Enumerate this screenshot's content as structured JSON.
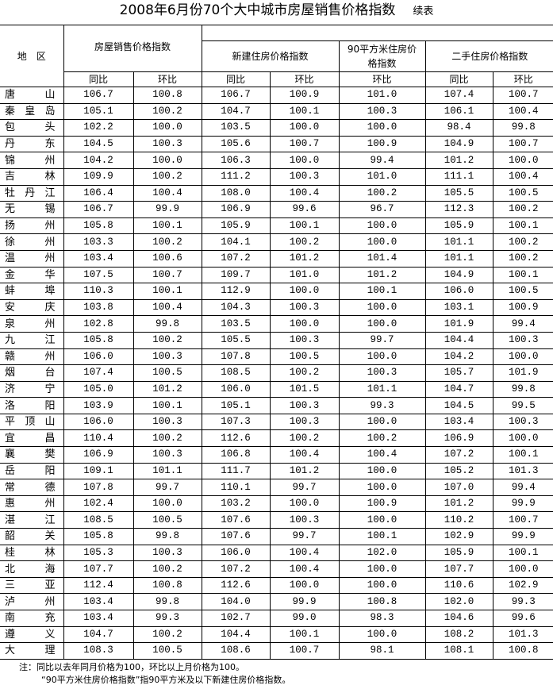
{
  "title": "2008年6月份70个大中城市房屋销售价格指数",
  "title_suffix": "续表",
  "headers": {
    "region": "地　区",
    "group1": "房屋销售价格指数",
    "group2": "新建住房价格指数",
    "group3": "90平方米住房价格指数",
    "group4": "二手住房价格指数",
    "yoy": "同比",
    "mom": "环比"
  },
  "rows": [
    [
      "唐山",
      "106.7",
      "100.8",
      "106.7",
      "100.9",
      "101.0",
      "107.4",
      "100.7"
    ],
    [
      "秦皇岛",
      "105.1",
      "100.2",
      "104.7",
      "100.1",
      "100.3",
      "106.1",
      "100.4"
    ],
    [
      "包头",
      "102.2",
      "100.0",
      "103.5",
      "100.0",
      "100.0",
      "98.4",
      "99.8"
    ],
    [
      "丹东",
      "104.5",
      "100.3",
      "105.6",
      "100.7",
      "100.9",
      "104.9",
      "100.7"
    ],
    [
      "锦州",
      "104.2",
      "100.0",
      "106.3",
      "100.0",
      "99.4",
      "101.2",
      "100.0"
    ],
    [
      "吉林",
      "109.9",
      "100.2",
      "111.2",
      "100.3",
      "101.0",
      "111.1",
      "100.4"
    ],
    [
      "牡丹江",
      "106.4",
      "100.4",
      "108.0",
      "100.4",
      "100.2",
      "105.5",
      "100.5"
    ],
    [
      "无锡",
      "106.7",
      "99.9",
      "106.9",
      "99.6",
      "96.7",
      "112.3",
      "100.2"
    ],
    [
      "扬州",
      "105.8",
      "100.1",
      "105.9",
      "100.1",
      "100.0",
      "105.9",
      "100.1"
    ],
    [
      "徐州",
      "103.3",
      "100.2",
      "104.1",
      "100.2",
      "100.0",
      "101.1",
      "100.2"
    ],
    [
      "温州",
      "103.4",
      "100.6",
      "107.2",
      "101.2",
      "101.4",
      "101.1",
      "100.2"
    ],
    [
      "金华",
      "107.5",
      "100.7",
      "109.7",
      "101.0",
      "101.2",
      "104.9",
      "100.1"
    ],
    [
      "蚌埠",
      "110.3",
      "100.1",
      "112.9",
      "100.0",
      "100.1",
      "106.0",
      "100.5"
    ],
    [
      "安庆",
      "103.8",
      "100.4",
      "104.3",
      "100.3",
      "100.0",
      "103.1",
      "100.9"
    ],
    [
      "泉州",
      "102.8",
      "99.8",
      "103.5",
      "100.0",
      "100.0",
      "101.9",
      "99.4"
    ],
    [
      "九江",
      "105.8",
      "100.2",
      "105.5",
      "100.3",
      "99.7",
      "104.4",
      "100.3"
    ],
    [
      "赣州",
      "106.0",
      "100.3",
      "107.8",
      "100.5",
      "100.0",
      "104.2",
      "100.0"
    ],
    [
      "烟台",
      "107.4",
      "100.5",
      "108.5",
      "100.2",
      "100.3",
      "105.7",
      "101.9"
    ],
    [
      "济宁",
      "105.0",
      "101.2",
      "106.0",
      "101.5",
      "101.1",
      "104.7",
      "99.8"
    ],
    [
      "洛阳",
      "103.9",
      "100.1",
      "105.1",
      "100.3",
      "99.3",
      "104.5",
      "99.5"
    ],
    [
      "平顶山",
      "106.0",
      "100.3",
      "107.3",
      "100.3",
      "100.0",
      "103.4",
      "100.3"
    ],
    [
      "宜昌",
      "110.4",
      "100.2",
      "112.6",
      "100.2",
      "100.2",
      "106.9",
      "100.0"
    ],
    [
      "襄樊",
      "106.9",
      "100.3",
      "106.8",
      "100.4",
      "100.4",
      "107.2",
      "100.1"
    ],
    [
      "岳阳",
      "109.1",
      "101.1",
      "111.7",
      "101.2",
      "100.0",
      "105.2",
      "101.3"
    ],
    [
      "常德",
      "107.8",
      "99.7",
      "110.1",
      "99.7",
      "100.0",
      "107.0",
      "99.4"
    ],
    [
      "惠州",
      "102.4",
      "100.0",
      "103.2",
      "100.0",
      "100.9",
      "101.2",
      "99.9"
    ],
    [
      "湛江",
      "108.5",
      "100.5",
      "107.6",
      "100.3",
      "100.0",
      "110.2",
      "100.7"
    ],
    [
      "韶关",
      "105.8",
      "99.8",
      "107.6",
      "99.7",
      "100.1",
      "102.9",
      "99.9"
    ],
    [
      "桂林",
      "105.3",
      "100.3",
      "106.0",
      "100.4",
      "102.0",
      "105.9",
      "100.1"
    ],
    [
      "北海",
      "107.7",
      "100.2",
      "107.2",
      "100.4",
      "100.0",
      "107.7",
      "100.0"
    ],
    [
      "三亚",
      "112.4",
      "100.8",
      "112.6",
      "100.0",
      "100.0",
      "110.6",
      "102.9"
    ],
    [
      "泸州",
      "103.4",
      "99.8",
      "104.0",
      "99.9",
      "100.8",
      "102.0",
      "99.3"
    ],
    [
      "南充",
      "103.4",
      "99.3",
      "102.7",
      "99.0",
      "98.3",
      "104.6",
      "99.6"
    ],
    [
      "遵义",
      "104.7",
      "100.2",
      "104.4",
      "100.1",
      "100.0",
      "108.2",
      "101.3"
    ],
    [
      "大理",
      "108.3",
      "100.5",
      "108.6",
      "100.7",
      "98.1",
      "108.1",
      "100.8"
    ]
  ],
  "notes": [
    "注：同比以去年同月价格为100，环比以上月价格为100。",
    "“90平方米住房价格指数”指90平方米及以下新建住房价格指数。"
  ]
}
